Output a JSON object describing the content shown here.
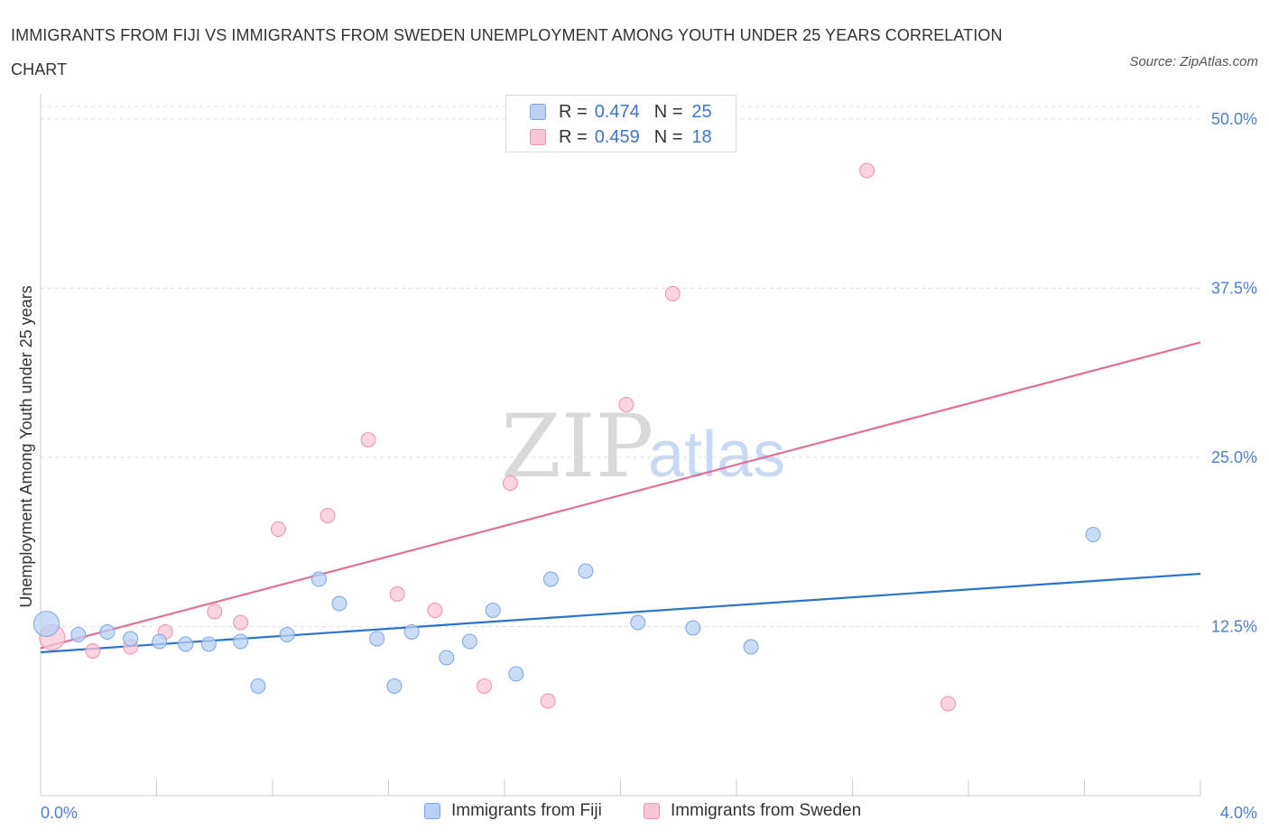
{
  "title": "IMMIGRANTS FROM FIJI VS IMMIGRANTS FROM SWEDEN UNEMPLOYMENT AMONG YOUTH UNDER 25 YEARS CORRELATION CHART",
  "source": "Source: ZipAtlas.com",
  "watermark": {
    "zip": "ZIP",
    "atlas": "atlas"
  },
  "legend": {
    "fiji": {
      "r_label": "R =",
      "r_value": "0.474",
      "n_label": "N =",
      "n_value": "25"
    },
    "sweden": {
      "r_label": "R =",
      "r_value": "0.459",
      "n_label": "N =",
      "n_value": "18"
    }
  },
  "bottom_legend": {
    "fiji": "Immigrants from Fiji",
    "sweden": "Immigrants from Sweden"
  },
  "colors": {
    "fiji_fill": "#b8d0f3",
    "fiji_stroke": "#7fa7e0",
    "fiji_line": "#2f72cc",
    "sweden_fill": "#f8c6d5",
    "sweden_stroke": "#e896b0",
    "sweden_line": "#e0709a",
    "grid": "#dddddd",
    "axis": "#cccccc",
    "tick_text": "#4f7fcf"
  },
  "chart_data": {
    "type": "scatter",
    "title": "IMMIGRANTS FROM FIJI VS IMMIGRANTS FROM SWEDEN UNEMPLOYMENT AMONG YOUTH UNDER 25 YEARS CORRELATION CHART",
    "xlabel": "",
    "ylabel": "Unemployment Among Youth under 25 years",
    "xlim": [
      0,
      4
    ],
    "ylim": [
      0,
      50
    ],
    "x_tick_labels": [
      "0.0%",
      "4.0%"
    ],
    "y_ticks": [
      12.5,
      25,
      37.5,
      50
    ],
    "y_tick_labels": [
      "12.5%",
      "25.0%",
      "37.5%",
      "50.0%"
    ],
    "grid": true,
    "legend_position": "top-center",
    "series": [
      {
        "name": "Immigrants from Fiji",
        "r": 0.474,
        "n": 25,
        "trend": {
          "x": [
            0,
            4
          ],
          "y": [
            10.6,
            16.4
          ]
        },
        "points": [
          {
            "x": 0.02,
            "y": 12.7,
            "big": true
          },
          {
            "x": 0.13,
            "y": 11.9
          },
          {
            "x": 0.23,
            "y": 12.1
          },
          {
            "x": 0.31,
            "y": 11.6
          },
          {
            "x": 0.41,
            "y": 11.4
          },
          {
            "x": 0.5,
            "y": 11.2
          },
          {
            "x": 0.58,
            "y": 11.2
          },
          {
            "x": 0.69,
            "y": 11.4
          },
          {
            "x": 0.75,
            "y": 8.1
          },
          {
            "x": 0.85,
            "y": 11.9
          },
          {
            "x": 0.96,
            "y": 16.0
          },
          {
            "x": 1.03,
            "y": 14.2
          },
          {
            "x": 1.16,
            "y": 11.6
          },
          {
            "x": 1.22,
            "y": 8.1
          },
          {
            "x": 1.28,
            "y": 12.1
          },
          {
            "x": 1.4,
            "y": 10.2
          },
          {
            "x": 1.48,
            "y": 11.4
          },
          {
            "x": 1.56,
            "y": 13.7
          },
          {
            "x": 1.64,
            "y": 9.0
          },
          {
            "x": 1.76,
            "y": 16.0
          },
          {
            "x": 1.88,
            "y": 16.6
          },
          {
            "x": 2.06,
            "y": 12.8
          },
          {
            "x": 2.25,
            "y": 12.4
          },
          {
            "x": 2.45,
            "y": 11.0
          },
          {
            "x": 3.63,
            "y": 19.3
          }
        ]
      },
      {
        "name": "Immigrants from Sweden",
        "r": 0.459,
        "n": 18,
        "trend": {
          "x": [
            0,
            4
          ],
          "y": [
            10.9,
            33.5
          ]
        },
        "points": [
          {
            "x": 0.04,
            "y": 11.7,
            "big": true
          },
          {
            "x": 0.18,
            "y": 10.7
          },
          {
            "x": 0.31,
            "y": 11.0
          },
          {
            "x": 0.43,
            "y": 12.1
          },
          {
            "x": 0.6,
            "y": 13.6
          },
          {
            "x": 0.69,
            "y": 12.8
          },
          {
            "x": 0.82,
            "y": 19.7
          },
          {
            "x": 0.99,
            "y": 20.7
          },
          {
            "x": 1.13,
            "y": 26.3
          },
          {
            "x": 1.23,
            "y": 14.9
          },
          {
            "x": 1.36,
            "y": 13.7
          },
          {
            "x": 1.53,
            "y": 8.1
          },
          {
            "x": 1.62,
            "y": 23.1
          },
          {
            "x": 1.75,
            "y": 7.0
          },
          {
            "x": 2.02,
            "y": 28.9
          },
          {
            "x": 2.18,
            "y": 37.1
          },
          {
            "x": 2.85,
            "y": 46.2
          },
          {
            "x": 3.13,
            "y": 6.8
          }
        ]
      }
    ]
  }
}
